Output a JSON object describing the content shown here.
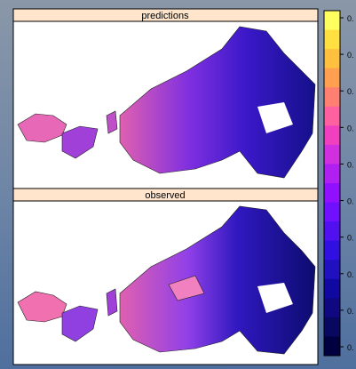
{
  "panels": [
    {
      "label": "predictions"
    },
    {
      "label": "observed"
    }
  ],
  "colorbar": {
    "labels": [
      "0.",
      "0.",
      "0.",
      "0.",
      "0.",
      "0.",
      "0.",
      "0.",
      "0.",
      "0."
    ],
    "colors": [
      "#ffff60",
      "#ffe040",
      "#ffc040",
      "#ffa050",
      "#ff8070",
      "#ff60a0",
      "#f040c0",
      "#d030e0",
      "#b020f0",
      "#9010ff",
      "#7010ff",
      "#5010f0",
      "#3010e0",
      "#2010c0",
      "#1008a0",
      "#100880",
      "#080860",
      "#000040"
    ]
  }
}
